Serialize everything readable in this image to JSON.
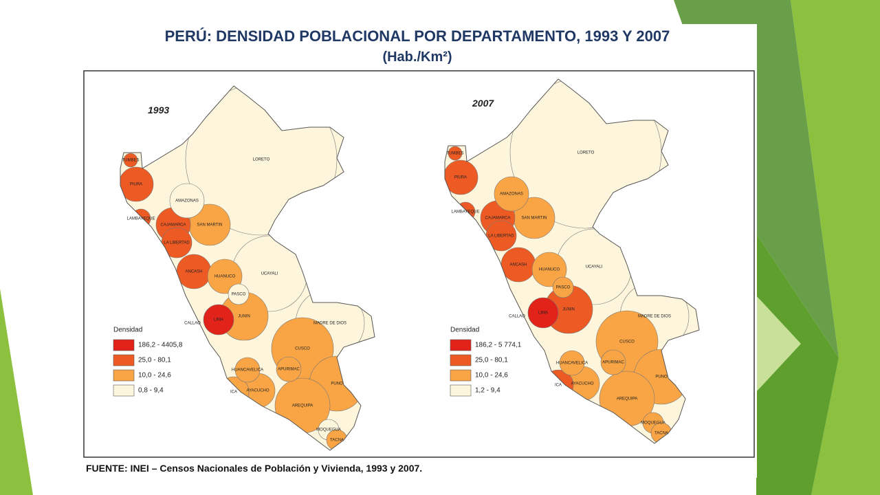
{
  "title": "PERÚ: DENSIDAD POBLACIONAL POR DEPARTAMENTO, 1993 Y 2007",
  "subtitle": "(Hab./Km²)",
  "maps": [
    {
      "year": "1993",
      "legend_title": "Densidad",
      "legend": [
        {
          "label": "186,2 - 4405,8",
          "color": "#e2231a"
        },
        {
          "label": "25,0 - 80,1",
          "color": "#ee5a24"
        },
        {
          "label": "10,0 - 24,6",
          "color": "#f9a545"
        },
        {
          "label": "0,8 - 9,4",
          "color": "#fdf6dc"
        }
      ],
      "departments": [
        {
          "name": "TUMBES",
          "color": "#ee5a24"
        },
        {
          "name": "PIURA",
          "color": "#ee5a24"
        },
        {
          "name": "LAMBAYEQUE",
          "color": "#ee5a24"
        },
        {
          "name": "CAJAMARCA",
          "color": "#ee5a24"
        },
        {
          "name": "AMAZONAS",
          "color": "#fdf6dc"
        },
        {
          "name": "SAN MARTIN",
          "color": "#f9a545"
        },
        {
          "name": "LA LIBERTAD",
          "color": "#ee5a24"
        },
        {
          "name": "ANCASH",
          "color": "#ee5a24"
        },
        {
          "name": "HUANUCO",
          "color": "#f9a545"
        },
        {
          "name": "PASCO",
          "color": "#fdf6dc"
        },
        {
          "name": "UCAYALI",
          "color": "#fdf6dc"
        },
        {
          "name": "LORETO",
          "color": "#fdf6dc"
        },
        {
          "name": "CALLAO",
          "color": "#e2231a"
        },
        {
          "name": "LIMA",
          "color": "#e2231a"
        },
        {
          "name": "JUNIN",
          "color": "#f9a545"
        },
        {
          "name": "HUANCAVELICA",
          "color": "#f9a545"
        },
        {
          "name": "ICA",
          "color": "#f9a545"
        },
        {
          "name": "AYACUCHO",
          "color": "#f9a545"
        },
        {
          "name": "APURIMAC",
          "color": "#f9a545"
        },
        {
          "name": "CUSCO",
          "color": "#f9a545"
        },
        {
          "name": "MADRE DE DIOS",
          "color": "#fdf6dc"
        },
        {
          "name": "PUNO",
          "color": "#f9a545"
        },
        {
          "name": "AREQUIPA",
          "color": "#f9a545"
        },
        {
          "name": "MOQUEGUA",
          "color": "#fdf6dc"
        },
        {
          "name": "TACNA",
          "color": "#f9a545"
        }
      ]
    },
    {
      "year": "2007",
      "legend_title": "Densidad",
      "legend": [
        {
          "label": "186,2 - 5 774,1",
          "color": "#e2231a"
        },
        {
          "label": "25,0 - 80,1",
          "color": "#ee5a24"
        },
        {
          "label": "10,0 - 24,6",
          "color": "#f9a545"
        },
        {
          "label": "1,2 - 9,4",
          "color": "#fdf6dc"
        }
      ],
      "departments": [
        {
          "name": "TUMBES",
          "color": "#ee5a24"
        },
        {
          "name": "PIURA",
          "color": "#ee5a24"
        },
        {
          "name": "LAMBAYEQUE",
          "color": "#ee5a24"
        },
        {
          "name": "CAJAMARCA",
          "color": "#ee5a24"
        },
        {
          "name": "AMAZONAS",
          "color": "#f9a545"
        },
        {
          "name": "SAN MARTIN",
          "color": "#f9a545"
        },
        {
          "name": "LA LIBERTAD",
          "color": "#ee5a24"
        },
        {
          "name": "ANCASH",
          "color": "#ee5a24"
        },
        {
          "name": "HUANUCO",
          "color": "#f9a545"
        },
        {
          "name": "PASCO",
          "color": "#f9a545"
        },
        {
          "name": "UCAYALI",
          "color": "#fdf6dc"
        },
        {
          "name": "LORETO",
          "color": "#fdf6dc"
        },
        {
          "name": "CALLAO",
          "color": "#e2231a"
        },
        {
          "name": "LIMA",
          "color": "#e2231a"
        },
        {
          "name": "JUNIN",
          "color": "#ee5a24"
        },
        {
          "name": "HUANCAVELICA",
          "color": "#f9a545"
        },
        {
          "name": "ICA",
          "color": "#ee5a24"
        },
        {
          "name": "AYACUCHO",
          "color": "#f9a545"
        },
        {
          "name": "APURIMAC",
          "color": "#f9a545"
        },
        {
          "name": "CUSCO",
          "color": "#f9a545"
        },
        {
          "name": "MADRE DE DIOS",
          "color": "#fdf6dc"
        },
        {
          "name": "PUNO",
          "color": "#f9a545"
        },
        {
          "name": "AREQUIPA",
          "color": "#f9a545"
        },
        {
          "name": "MOQUEGUA",
          "color": "#f9a545"
        },
        {
          "name": "TACNA",
          "color": "#f9a545"
        }
      ]
    }
  ],
  "source": "FUENTE: INEI – Censos Nacionales de Población y Vivienda, 1993 y 2007."
}
